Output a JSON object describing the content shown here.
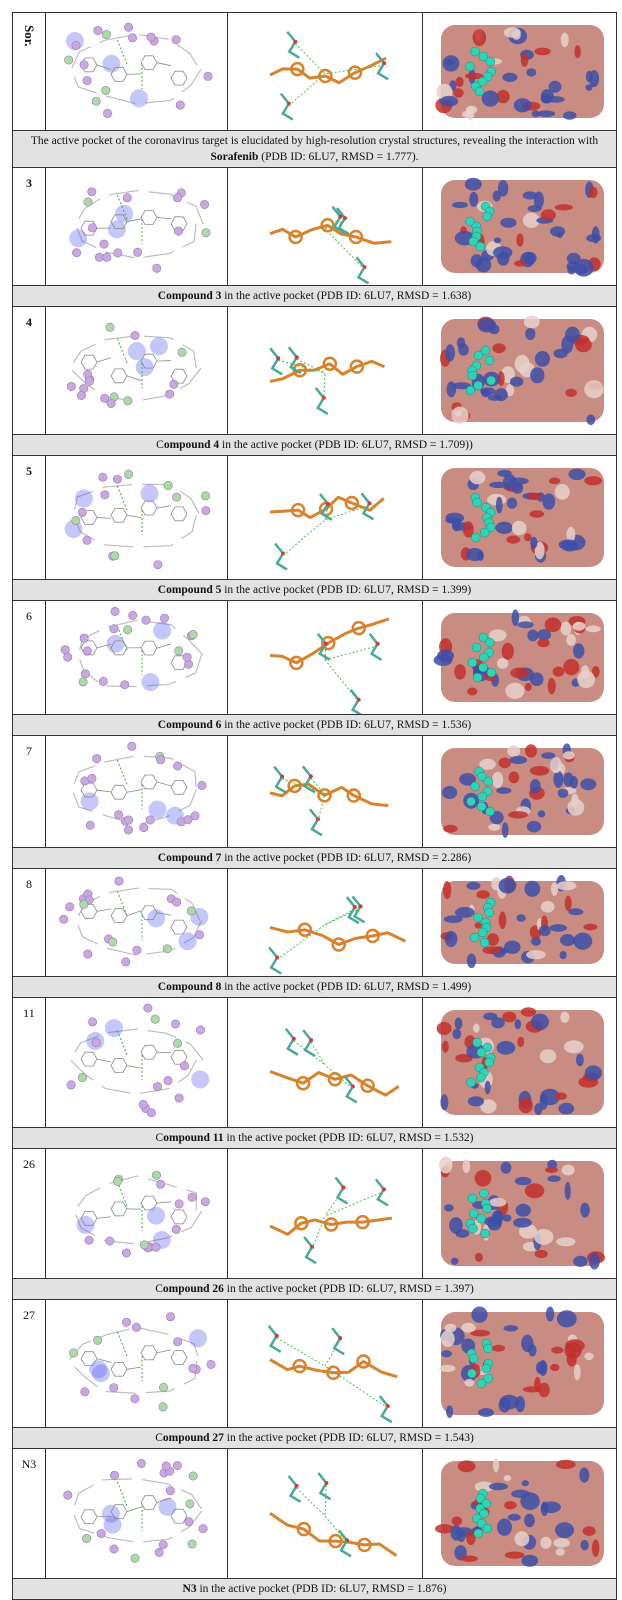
{
  "rows": [
    {
      "label": "Sor.",
      "vertical": true,
      "caption_prefix": "The active pocket of the coronavirus target is elucidated by high-resolution crystal structures, revealing the interaction with ",
      "caption_bold": "Sorafenib",
      "caption_suffix": " (PDB ID: 6LU7, RMSD = 1.777)."
    },
    {
      "label": "3",
      "vertical": false,
      "caption_prefix": "",
      "caption_bold": "Compound 3",
      "caption_suffix": " in the active pocket (PDB ID: 6LU7, RMSD = 1.638)"
    },
    {
      "label": "4",
      "vertical": false,
      "caption_prefix": "C",
      "caption_bold": "ompound 4",
      "caption_suffix": " in the active pocket (PDB ID: 6LU7, RMSD = 1.709))"
    },
    {
      "label": "5",
      "vertical": false,
      "caption_prefix": "",
      "caption_bold": "Compound 5",
      "caption_suffix": " in the active pocket (PDB ID: 6LU7, RMSD = 1.399)"
    },
    {
      "label": "6",
      "vertical": false,
      "caption_prefix": "",
      "caption_bold": "Compound 6",
      "caption_suffix": " in the active pocket (PDB ID: 6LU7, RMSD = 1.536)"
    },
    {
      "label": "7",
      "vertical": false,
      "caption_prefix": "",
      "caption_bold": "Compound 7",
      "caption_suffix": " in the active pocket (PDB ID: 6LU7, RMSD = 2.286)"
    },
    {
      "label": "8",
      "vertical": false,
      "caption_prefix": "",
      "caption_bold": "Compound 8",
      "caption_suffix": " in the active pocket (PDB ID: 6LU7, RMSD = 1.499)"
    },
    {
      "label": "11",
      "vertical": false,
      "caption_prefix": "C",
      "caption_bold": "ompound 11",
      "caption_suffix": " in the active pocket (PDB ID: 6LU7, RMSD = 1.532)"
    },
    {
      "label": "26",
      "vertical": false,
      "caption_prefix": "C",
      "caption_bold": "ompound 26",
      "caption_suffix": " in the active pocket (PDB ID: 6LU7, RMSD = 1.397)"
    },
    {
      "label": "27",
      "vertical": false,
      "caption_prefix": "C",
      "caption_bold": "ompound 27",
      "caption_suffix": " in the active pocket (PDB ID: 6LU7, RMSD = 1.543)"
    },
    {
      "label": "N3",
      "vertical": false,
      "caption_prefix": "",
      "caption_bold": "N3",
      "caption_suffix": "  in the active pocket (PDB ID: 6LU7, RMSD = 1.876)"
    }
  ],
  "colors": {
    "caption_bg": "#e2e2e2",
    "ligand_orange": "#d9822b",
    "residue_teal": "#4aa89a",
    "surface_salmon": "#c98c83",
    "surface_blue": "#3d4fa8",
    "surface_red": "#c2302c",
    "sphere_cyan": "#2fd4b8",
    "residue_purple": "#c9a8e0",
    "residue_green": "#a8dca0",
    "halo_blue": "#5a5cf0"
  }
}
